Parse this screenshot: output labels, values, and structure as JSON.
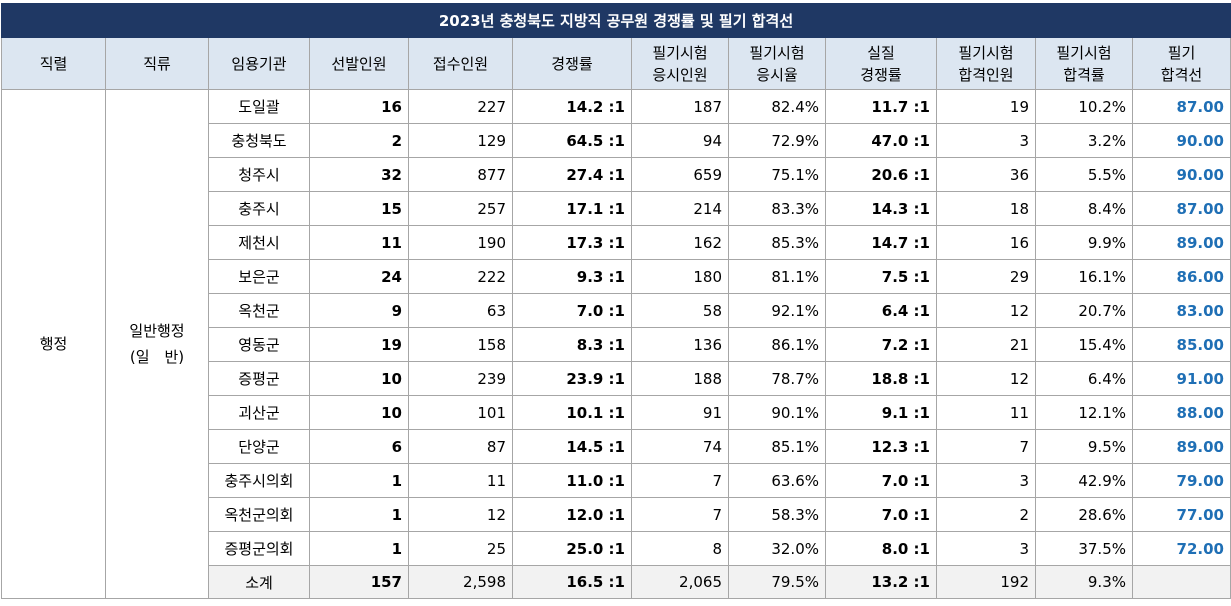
{
  "title": "2023년 충청북도 지방직 공무원 경쟁률 및 필기 합격선",
  "headers": [
    {
      "l1": "직렬",
      "l2": ""
    },
    {
      "l1": "직류",
      "l2": ""
    },
    {
      "l1": "임용기관",
      "l2": ""
    },
    {
      "l1": "선발인원",
      "l2": ""
    },
    {
      "l1": "접수인원",
      "l2": ""
    },
    {
      "l1": "경쟁률",
      "l2": ""
    },
    {
      "l1": "필기시험",
      "l2": "응시인원"
    },
    {
      "l1": "필기시험",
      "l2": "응시율"
    },
    {
      "l1": "실질",
      "l2": "경쟁률"
    },
    {
      "l1": "필기시험",
      "l2": "합격인원"
    },
    {
      "l1": "필기시험",
      "l2": "합격률"
    },
    {
      "l1": "필기",
      "l2": "합격선"
    }
  ],
  "series": "행정",
  "track": {
    "l1": "일반행정",
    "l2": "(일　반)"
  },
  "rows": [
    {
      "org": "도일괄",
      "sel": "16",
      "app": "227",
      "comp": "14.2 :1",
      "took": "187",
      "rate": "82.4%",
      "real": "11.7 :1",
      "pass": "19",
      "prate": "10.2%",
      "cut": "87.00"
    },
    {
      "org": "충청북도",
      "sel": "2",
      "app": "129",
      "comp": "64.5 :1",
      "took": "94",
      "rate": "72.9%",
      "real": "47.0 :1",
      "pass": "3",
      "prate": "3.2%",
      "cut": "90.00"
    },
    {
      "org": "청주시",
      "sel": "32",
      "app": "877",
      "comp": "27.4 :1",
      "took": "659",
      "rate": "75.1%",
      "real": "20.6 :1",
      "pass": "36",
      "prate": "5.5%",
      "cut": "90.00"
    },
    {
      "org": "충주시",
      "sel": "15",
      "app": "257",
      "comp": "17.1 :1",
      "took": "214",
      "rate": "83.3%",
      "real": "14.3 :1",
      "pass": "18",
      "prate": "8.4%",
      "cut": "87.00"
    },
    {
      "org": "제천시",
      "sel": "11",
      "app": "190",
      "comp": "17.3 :1",
      "took": "162",
      "rate": "85.3%",
      "real": "14.7 :1",
      "pass": "16",
      "prate": "9.9%",
      "cut": "89.00"
    },
    {
      "org": "보은군",
      "sel": "24",
      "app": "222",
      "comp": "9.3 :1",
      "took": "180",
      "rate": "81.1%",
      "real": "7.5 :1",
      "pass": "29",
      "prate": "16.1%",
      "cut": "86.00"
    },
    {
      "org": "옥천군",
      "sel": "9",
      "app": "63",
      "comp": "7.0 :1",
      "took": "58",
      "rate": "92.1%",
      "real": "6.4 :1",
      "pass": "12",
      "prate": "20.7%",
      "cut": "83.00"
    },
    {
      "org": "영동군",
      "sel": "19",
      "app": "158",
      "comp": "8.3 :1",
      "took": "136",
      "rate": "86.1%",
      "real": "7.2 :1",
      "pass": "21",
      "prate": "15.4%",
      "cut": "85.00"
    },
    {
      "org": "증평군",
      "sel": "10",
      "app": "239",
      "comp": "23.9 :1",
      "took": "188",
      "rate": "78.7%",
      "real": "18.8 :1",
      "pass": "12",
      "prate": "6.4%",
      "cut": "91.00"
    },
    {
      "org": "괴산군",
      "sel": "10",
      "app": "101",
      "comp": "10.1 :1",
      "took": "91",
      "rate": "90.1%",
      "real": "9.1 :1",
      "pass": "11",
      "prate": "12.1%",
      "cut": "88.00"
    },
    {
      "org": "단양군",
      "sel": "6",
      "app": "87",
      "comp": "14.5 :1",
      "took": "74",
      "rate": "85.1%",
      "real": "12.3 :1",
      "pass": "7",
      "prate": "9.5%",
      "cut": "89.00"
    },
    {
      "org": "충주시의회",
      "sel": "1",
      "app": "11",
      "comp": "11.0 :1",
      "took": "7",
      "rate": "63.6%",
      "real": "7.0 :1",
      "pass": "3",
      "prate": "42.9%",
      "cut": "79.00"
    },
    {
      "org": "옥천군의회",
      "sel": "1",
      "app": "12",
      "comp": "12.0 :1",
      "took": "7",
      "rate": "58.3%",
      "real": "7.0 :1",
      "pass": "2",
      "prate": "28.6%",
      "cut": "77.00"
    },
    {
      "org": "증평군의회",
      "sel": "1",
      "app": "25",
      "comp": "25.0 :1",
      "took": "8",
      "rate": "32.0%",
      "real": "8.0 :1",
      "pass": "3",
      "prate": "37.5%",
      "cut": "72.00"
    }
  ],
  "subtotal": {
    "org": "소계",
    "sel": "157",
    "app": "2,598",
    "comp": "16.5 :1",
    "took": "2,065",
    "rate": "79.5%",
    "real": "13.2 :1",
    "pass": "192",
    "prate": "9.3%",
    "cut": ""
  }
}
